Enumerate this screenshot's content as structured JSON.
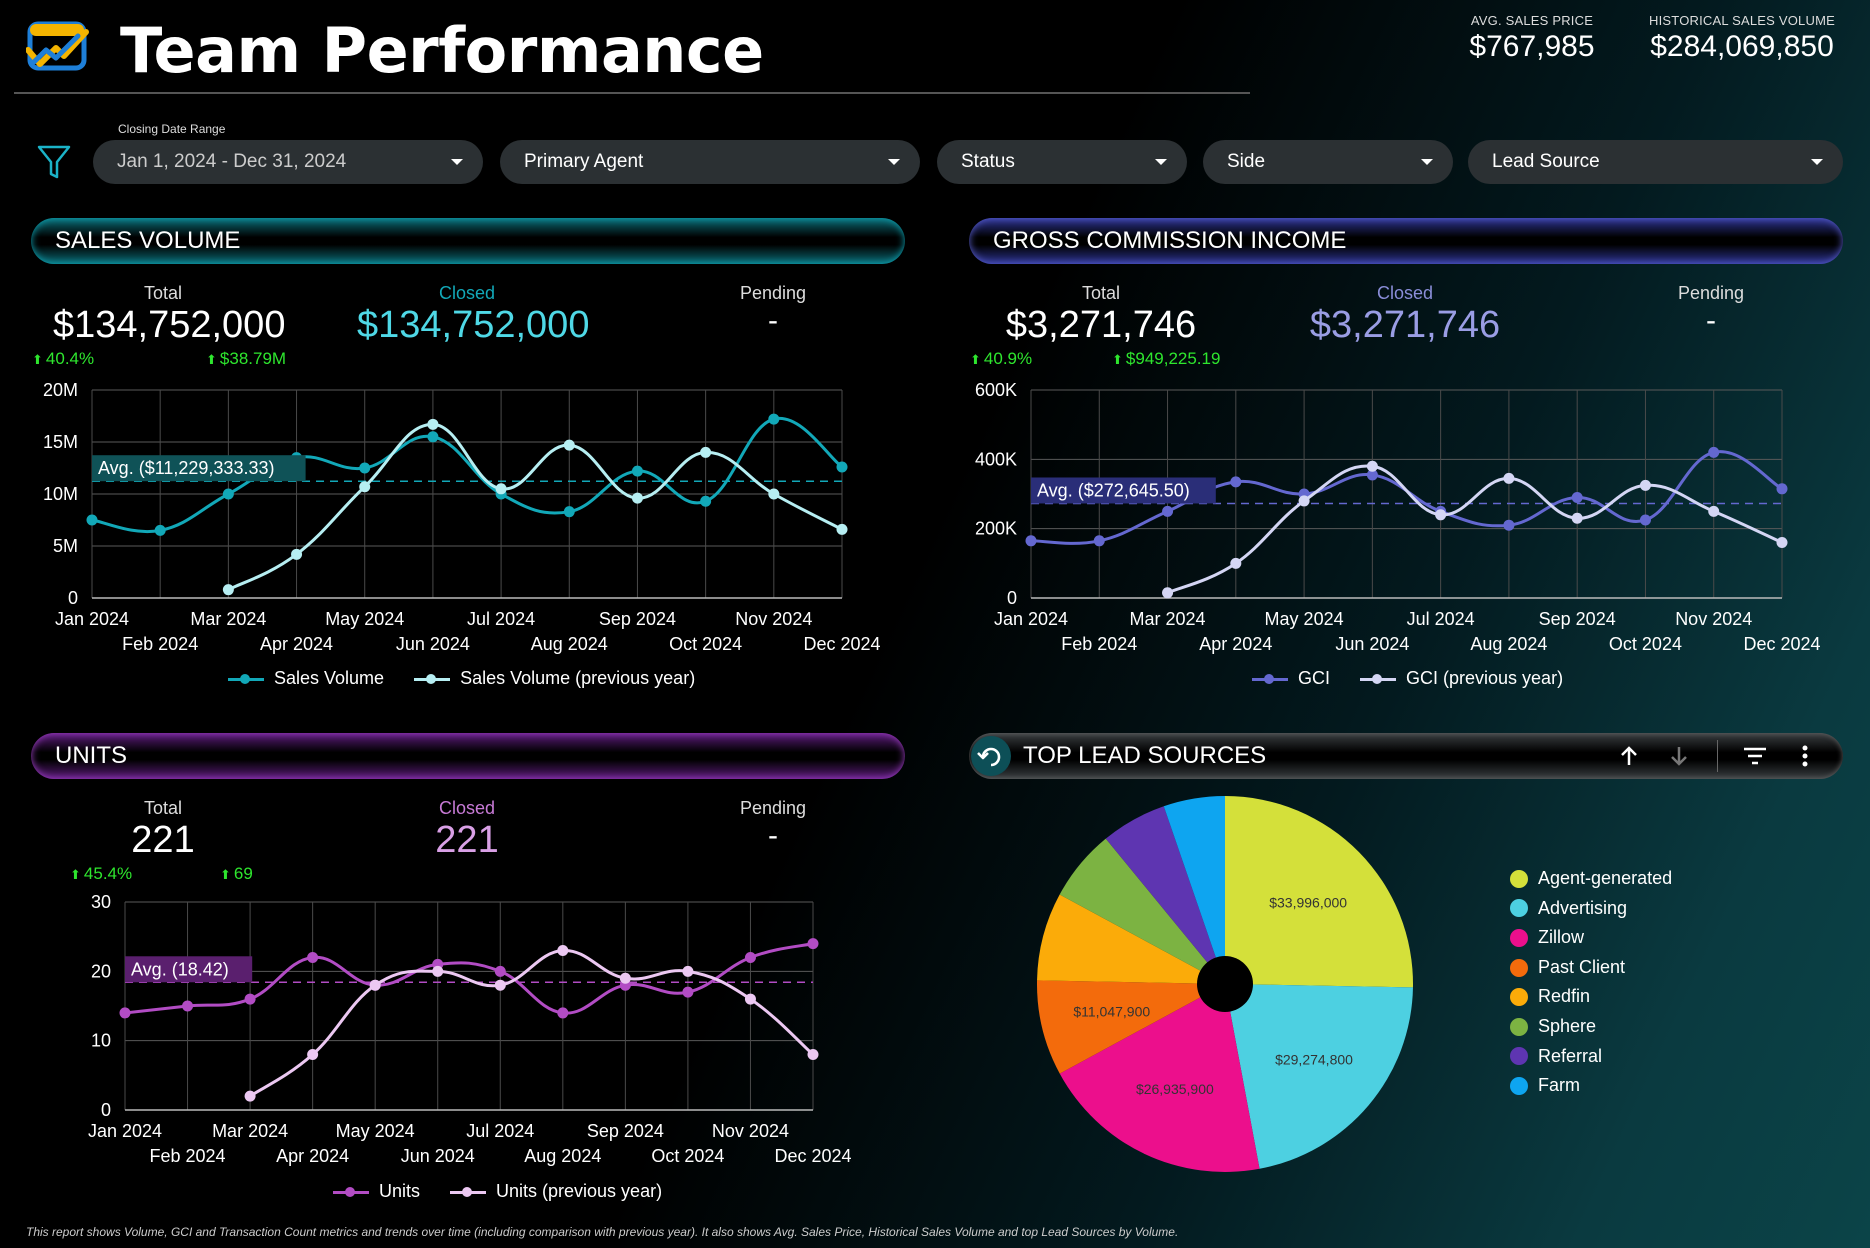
{
  "header": {
    "title": "Team Performance",
    "avg_sales_price_label": "AVG. SALES PRICE",
    "avg_sales_price_value": "$767,985",
    "hist_volume_label": "HISTORICAL SALES VOLUME",
    "hist_volume_value": "$284,069,850"
  },
  "filters": {
    "date_caption": "Closing Date Range",
    "date_range": "Jan 1, 2024 - Dec 31, 2024",
    "primary_agent": "Primary Agent",
    "status": "Status",
    "side": "Side",
    "lead_source": "Lead Source"
  },
  "colors": {
    "teal": "#12a8b8",
    "teal_light": "#b6eef2",
    "blue": "#6468d0",
    "blue_light": "#d4d6f4",
    "purple": "#b24cc4",
    "purple_light": "#ecc8f2",
    "delta_green": "#2ee62e"
  },
  "sales_volume": {
    "title": "SALES VOLUME",
    "total_label": "Total",
    "total_value": "$134,752,000",
    "closed_label": "Closed",
    "closed_value": "$134,752,000",
    "pending_label": "Pending",
    "pending_value": "-",
    "delta_pct": "40.4%",
    "delta_abs": "$38.79M"
  },
  "gci": {
    "title": "GROSS COMMISSION INCOME",
    "total_label": "Total",
    "total_value": "$3,271,746",
    "closed_label": "Closed",
    "closed_value": "$3,271,746",
    "pending_label": "Pending",
    "pending_value": "-",
    "delta_pct": "40.9%",
    "delta_abs": "$949,225.19"
  },
  "units": {
    "title": "UNITS",
    "total_label": "Total",
    "total_value": "221",
    "closed_label": "Closed",
    "closed_value": "221",
    "pending_label": "Pending",
    "pending_value": "-",
    "delta_pct": "45.4%",
    "delta_abs": "69"
  },
  "lead_sources": {
    "title": "TOP LEAD SOURCES"
  },
  "footer": "This report shows Volume, GCI and Transaction Count metrics and trends over time (including comparison with previous year). It also shows Avg. Sales Price, Historical Sales Volume and top Lead Sources by Volume.",
  "chart_data": [
    {
      "type": "line",
      "id": "sales_volume",
      "x": [
        "Jan 2024",
        "Feb 2024",
        "Mar 2024",
        "Apr 2024",
        "May 2024",
        "Jun 2024",
        "Jul 2024",
        "Aug 2024",
        "Sep 2024",
        "Oct 2024",
        "Nov 2024",
        "Dec 2024"
      ],
      "series": [
        {
          "name": "Sales Volume",
          "values": [
            7500000,
            6500000,
            10000000,
            13500000,
            12500000,
            15500000,
            10000000,
            8300000,
            12200000,
            9300000,
            17200000,
            12600000
          ]
        },
        {
          "name": "Sales Volume (previous year)",
          "values": [
            null,
            null,
            800000,
            4200000,
            10700000,
            16700000,
            10500000,
            14700000,
            9600000,
            14000000,
            10000000,
            6600000
          ]
        }
      ],
      "avg_label": "Avg. ($11,229,333.33)",
      "avg": 11229333.33,
      "y_ticks": [
        "0",
        "5M",
        "10M",
        "15M",
        "20M"
      ],
      "ylim": [
        0,
        20000000
      ],
      "grid": true,
      "legend": "bottom"
    },
    {
      "type": "line",
      "id": "gci",
      "x": [
        "Jan 2024",
        "Feb 2024",
        "Mar 2024",
        "Apr 2024",
        "May 2024",
        "Jun 2024",
        "Jul 2024",
        "Aug 2024",
        "Sep 2024",
        "Oct 2024",
        "Nov 2024",
        "Dec 2024"
      ],
      "series": [
        {
          "name": "GCI",
          "values": [
            165000,
            165000,
            250000,
            335000,
            300000,
            355000,
            250000,
            210000,
            290000,
            225000,
            420000,
            315000
          ]
        },
        {
          "name": "GCI (previous year)",
          "values": [
            null,
            null,
            15000,
            100000,
            280000,
            380000,
            240000,
            345000,
            230000,
            325000,
            250000,
            160000
          ]
        }
      ],
      "avg_label": "Avg. ($272,645.50)",
      "avg": 272645.5,
      "y_ticks": [
        "0",
        "200K",
        "400K",
        "600K"
      ],
      "ylim": [
        0,
        600000
      ],
      "grid": true,
      "legend": "bottom"
    },
    {
      "type": "line",
      "id": "units",
      "x": [
        "Jan 2024",
        "Feb 2024",
        "Mar 2024",
        "Apr 2024",
        "May 2024",
        "Jun 2024",
        "Jul 2024",
        "Aug 2024",
        "Sep 2024",
        "Oct 2024",
        "Nov 2024",
        "Dec 2024"
      ],
      "series": [
        {
          "name": "Units",
          "values": [
            14,
            15,
            16,
            22,
            18,
            21,
            20,
            14,
            18,
            17,
            22,
            24
          ]
        },
        {
          "name": "Units (previous year)",
          "values": [
            null,
            null,
            2,
            8,
            18,
            20,
            18,
            23,
            19,
            20,
            16,
            8
          ]
        }
      ],
      "avg_label": "Avg. (18.42)",
      "avg": 18.42,
      "y_ticks": [
        "0",
        "10",
        "20",
        "30"
      ],
      "ylim": [
        0,
        30
      ],
      "grid": true,
      "legend": "bottom"
    },
    {
      "type": "pie",
      "id": "lead_sources",
      "categories": [
        "Agent-generated",
        "Advertising",
        "Zillow",
        "Past Client",
        "Redfin",
        "Sphere",
        "Referral",
        "Farm"
      ],
      "values": [
        33996000,
        29274800,
        26935900,
        11047900,
        10200000,
        8300000,
        7600000,
        7100000
      ],
      "data_labels": [
        "$33,996,000",
        "$29,274,800",
        "$26,935,900",
        "$11,047,900",
        "",
        "",
        "",
        ""
      ],
      "colors": [
        "#d4e03a",
        "#4dd0e1",
        "#ec0f8c",
        "#f36b0c",
        "#fbab09",
        "#7cb342",
        "#5e35b1",
        "#0ea5f0"
      ],
      "legend": "right"
    }
  ]
}
